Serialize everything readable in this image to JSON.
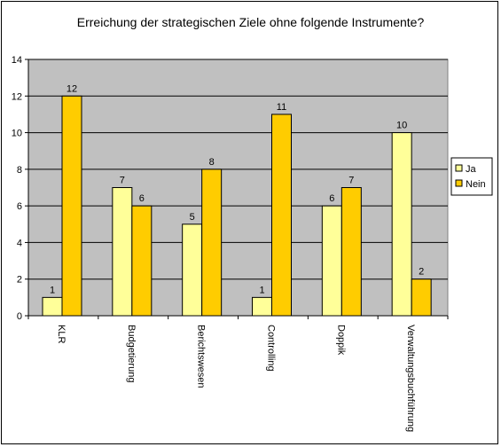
{
  "chart_data": {
    "type": "bar",
    "title": "Erreichung der strategischen Ziele ohne folgende Instrumente?",
    "categories": [
      "KLR",
      "Budgetierung",
      "Berichtswesen",
      "Controlling",
      "Doppik",
      "Verwaltungsbuchführung"
    ],
    "series": [
      {
        "name": "Ja",
        "values": [
          1,
          7,
          5,
          1,
          6,
          10
        ],
        "color": "#ffff99"
      },
      {
        "name": "Nein",
        "values": [
          12,
          6,
          8,
          11,
          7,
          2
        ],
        "color": "#ffcc00"
      }
    ],
    "ylim": [
      0,
      14
    ],
    "yticks": [
      0,
      2,
      4,
      6,
      8,
      10,
      12,
      14
    ],
    "grid": true,
    "plot_background": "#c0c0c0",
    "legend_position": "right"
  }
}
